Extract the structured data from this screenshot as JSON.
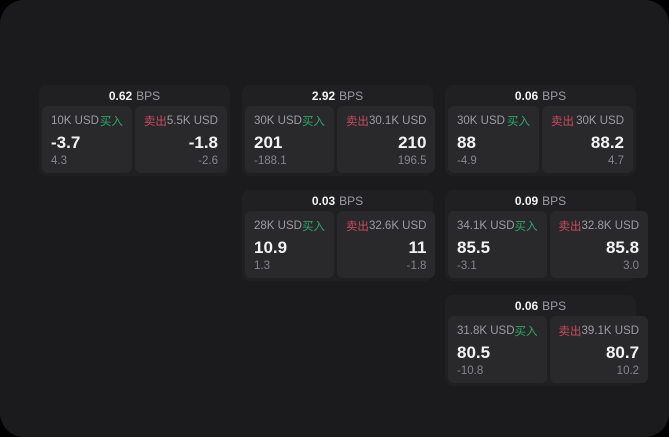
{
  "labels": {
    "bps_unit": "BPS",
    "buy": "买入",
    "sell": "卖出"
  },
  "colors": {
    "outer": "#000000",
    "surface": "#1b1b1d",
    "card": "#202022",
    "panel": "#29292b",
    "value": "#f2f2f3",
    "label": "#9c9ca2",
    "muted": "#85858b",
    "buy": "#2ea86a",
    "sell": "#c84a62"
  },
  "cards": [
    {
      "bps": "0.62",
      "grid": {
        "col": 1,
        "row": 1
      },
      "buy": {
        "amount": "10K USD",
        "value": "-3.7",
        "sub": "4.3"
      },
      "sell": {
        "amount": "5.5K USD",
        "value": "-1.8",
        "sub": "-2.6"
      }
    },
    {
      "bps": "2.92",
      "grid": {
        "col": 2,
        "row": 1
      },
      "buy": {
        "amount": "30K USD",
        "value": "201",
        "sub": "-188.1"
      },
      "sell": {
        "amount": "30.1K USD",
        "value": "210",
        "sub": "196.5"
      }
    },
    {
      "bps": "0.06",
      "grid": {
        "col": 3,
        "row": 1
      },
      "buy": {
        "amount": "30K USD",
        "value": "88",
        "sub": "-4.9"
      },
      "sell": {
        "amount": "30K USD",
        "value": "88.2",
        "sub": "4.7"
      }
    },
    {
      "bps": "0.03",
      "grid": {
        "col": 2,
        "row": 2
      },
      "buy": {
        "amount": "28K USD",
        "value": "10.9",
        "sub": "1.3"
      },
      "sell": {
        "amount": "32.6K USD",
        "value": "11",
        "sub": "-1.8"
      }
    },
    {
      "bps": "0.09",
      "grid": {
        "col": 3,
        "row": 2
      },
      "buy": {
        "amount": "34.1K USD",
        "value": "85.5",
        "sub": "-3.1"
      },
      "sell": {
        "amount": "32.8K USD",
        "value": "85.8",
        "sub": "3.0"
      }
    },
    {
      "bps": "0.06",
      "grid": {
        "col": 3,
        "row": 3
      },
      "buy": {
        "amount": "31.8K USD",
        "value": "80.5",
        "sub": "-10.8"
      },
      "sell": {
        "amount": "39.1K USD",
        "value": "80.7",
        "sub": "10.2"
      }
    }
  ]
}
